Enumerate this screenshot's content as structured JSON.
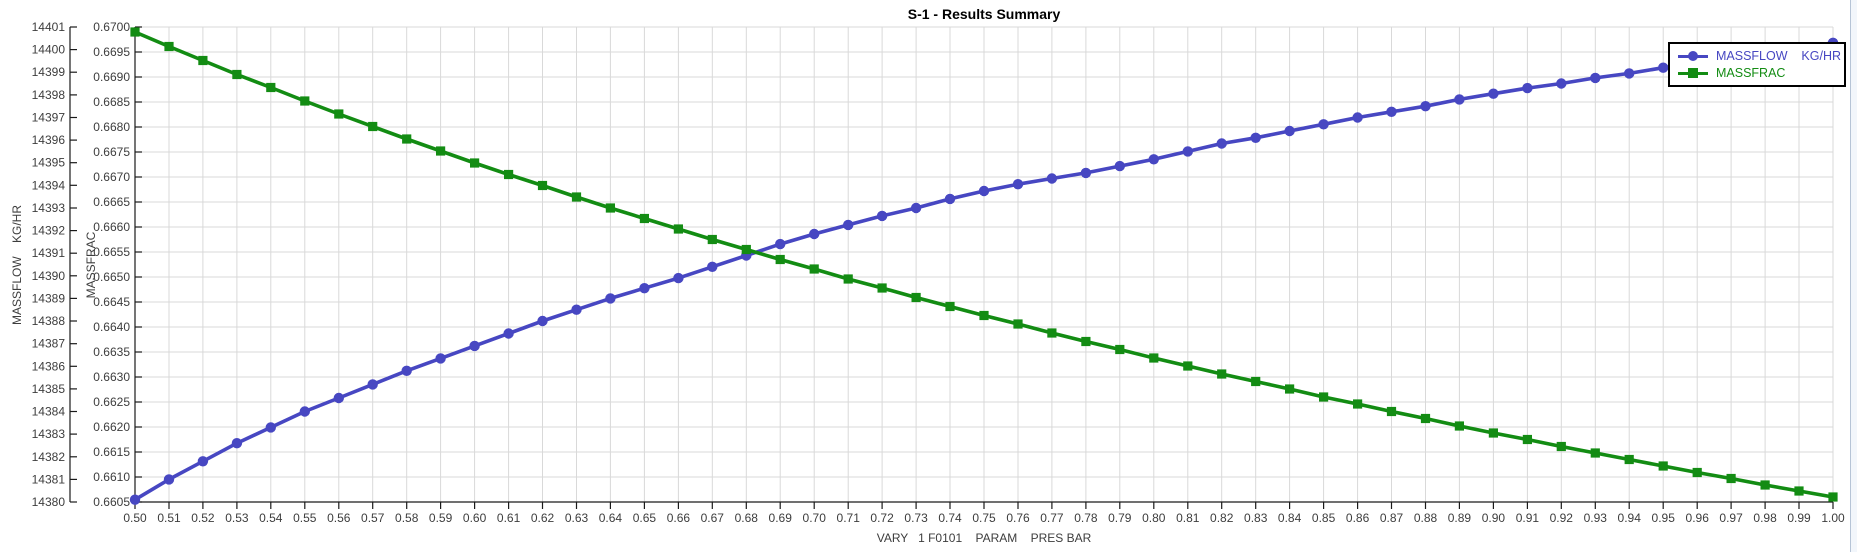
{
  "title": "S-1 - Results Summary",
  "window": {
    "right_edge": true
  },
  "colors": {
    "massflow_series": "#4747c2",
    "massfrac_series": "#138c13",
    "grid": "#d9d9d9",
    "axis": "#1a1a1a",
    "tick_label": "#3d3d3d",
    "background": "#ffffff",
    "legend_border": "#000000"
  },
  "legend": {
    "items": [
      {
        "label": "MASSFLOW    KG/HR",
        "marker": "circle",
        "color": "#4747c2"
      },
      {
        "label": "MASSFRAC",
        "marker": "square",
        "color": "#138c13"
      }
    ]
  },
  "chart_data": {
    "type": "line",
    "title": "S-1 - Results Summary",
    "grid": true,
    "legend_position": "top-right",
    "x_axis": {
      "label": "VARY   1 F0101    PARAM    PRES BAR",
      "min": 0.5,
      "max": 1.0,
      "tick_step": 0.01,
      "decimals": 2
    },
    "y_axes": [
      {
        "label": "MASSFLOW    KG/HR",
        "min": 14380,
        "max": 14401,
        "tick_step": 1,
        "decimals": 0
      },
      {
        "label": "MASSFRAC",
        "min": 0.6605,
        "max": 0.67,
        "tick_step": 0.0005,
        "decimals": 4
      }
    ],
    "x": [
      0.5,
      0.51,
      0.52,
      0.53,
      0.54,
      0.55,
      0.56,
      0.57,
      0.58,
      0.59,
      0.6,
      0.61,
      0.62,
      0.63,
      0.64,
      0.65,
      0.66,
      0.67,
      0.68,
      0.69,
      0.7,
      0.71,
      0.72,
      0.73,
      0.74,
      0.75,
      0.76,
      0.77,
      0.78,
      0.79,
      0.8,
      0.81,
      0.82,
      0.83,
      0.84,
      0.85,
      0.86,
      0.87,
      0.88,
      0.89,
      0.9,
      0.91,
      0.92,
      0.93,
      0.94,
      0.95,
      0.96,
      0.97,
      0.98,
      0.99,
      1.0
    ],
    "series": [
      {
        "name": "MASSFLOW    KG/HR",
        "axis": 0,
        "color": "#4747c2",
        "marker": "circle",
        "values": [
          14380.1,
          14381.0,
          14381.8,
          14382.6,
          14383.3,
          14384.0,
          14384.6,
          14385.2,
          14385.8,
          14386.35,
          14386.9,
          14387.45,
          14388.0,
          14388.5,
          14389.0,
          14389.45,
          14389.9,
          14390.4,
          14390.9,
          14391.4,
          14391.85,
          14392.25,
          14392.65,
          14393.0,
          14393.4,
          14393.75,
          14394.05,
          14394.3,
          14394.55,
          14394.85,
          14395.15,
          14395.5,
          14395.85,
          14396.1,
          14396.4,
          14396.7,
          14397.0,
          14397.25,
          14397.5,
          14397.8,
          14398.05,
          14398.3,
          14398.5,
          14398.75,
          14398.95,
          14399.2,
          14399.4,
          14399.6,
          14399.85,
          14400.05,
          14400.3
        ]
      },
      {
        "name": "MASSFRAC",
        "axis": 1,
        "color": "#138c13",
        "marker": "square",
        "values": [
          0.6699,
          0.66961,
          0.66933,
          0.66905,
          0.66879,
          0.66852,
          0.66826,
          0.66801,
          0.66776,
          0.66752,
          0.66728,
          0.66705,
          0.66683,
          0.6666,
          0.66638,
          0.66617,
          0.66596,
          0.66575,
          0.66555,
          0.66535,
          0.66516,
          0.66496,
          0.66478,
          0.66459,
          0.66441,
          0.66423,
          0.66406,
          0.66388,
          0.66371,
          0.66355,
          0.66338,
          0.66322,
          0.66306,
          0.66291,
          0.66276,
          0.6626,
          0.66246,
          0.66231,
          0.66217,
          0.66202,
          0.66188,
          0.66175,
          0.66161,
          0.66148,
          0.66135,
          0.66122,
          0.66109,
          0.66097,
          0.66084,
          0.66072,
          0.6606
        ]
      }
    ]
  }
}
